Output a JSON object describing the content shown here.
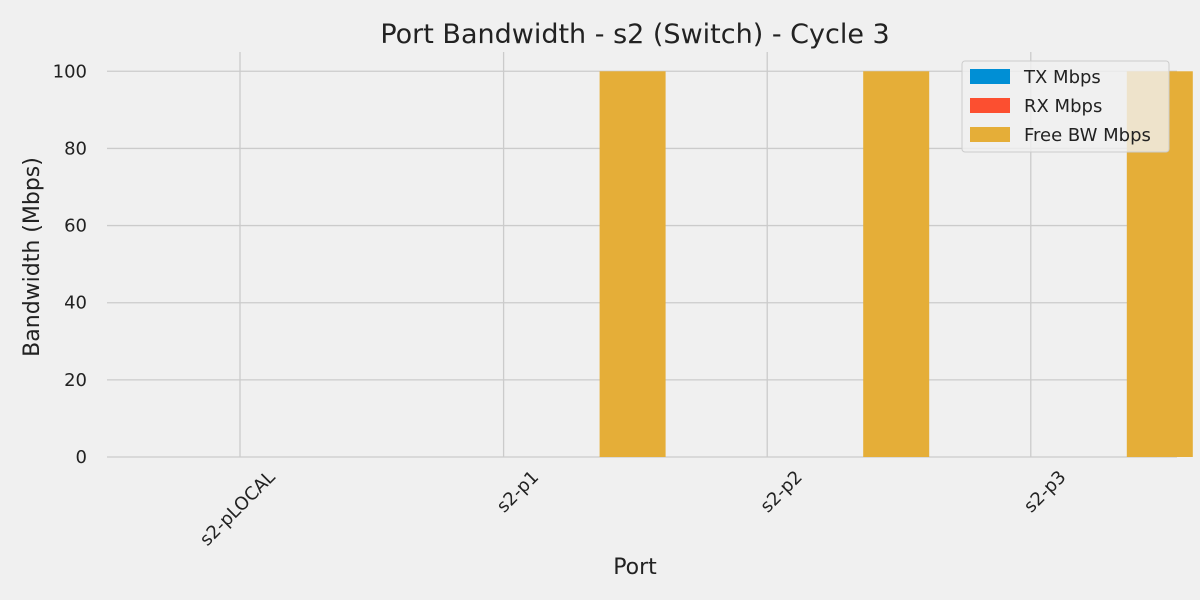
{
  "chart_data": {
    "type": "bar",
    "title": "Port Bandwidth - s2 (Switch) - Cycle 3",
    "xlabel": "Port",
    "ylabel": "Bandwidth (Mbps)",
    "categories": [
      "s2-pLOCAL",
      "s2-p1",
      "s2-p2",
      "s2-p3"
    ],
    "series": [
      {
        "name": "TX Mbps",
        "color": "#008fd5",
        "values": [
          0,
          0,
          0,
          0
        ]
      },
      {
        "name": "RX Mbps",
        "color": "#fc4f30",
        "values": [
          0,
          0,
          0,
          0
        ]
      },
      {
        "name": "Free BW Mbps",
        "color": "#e5ae38",
        "values": [
          0,
          100,
          100,
          100
        ]
      }
    ],
    "ylim": [
      0,
      105
    ],
    "yticks": [
      0,
      20,
      40,
      60,
      80,
      100
    ],
    "grid": true,
    "legend_position": "top-right"
  }
}
